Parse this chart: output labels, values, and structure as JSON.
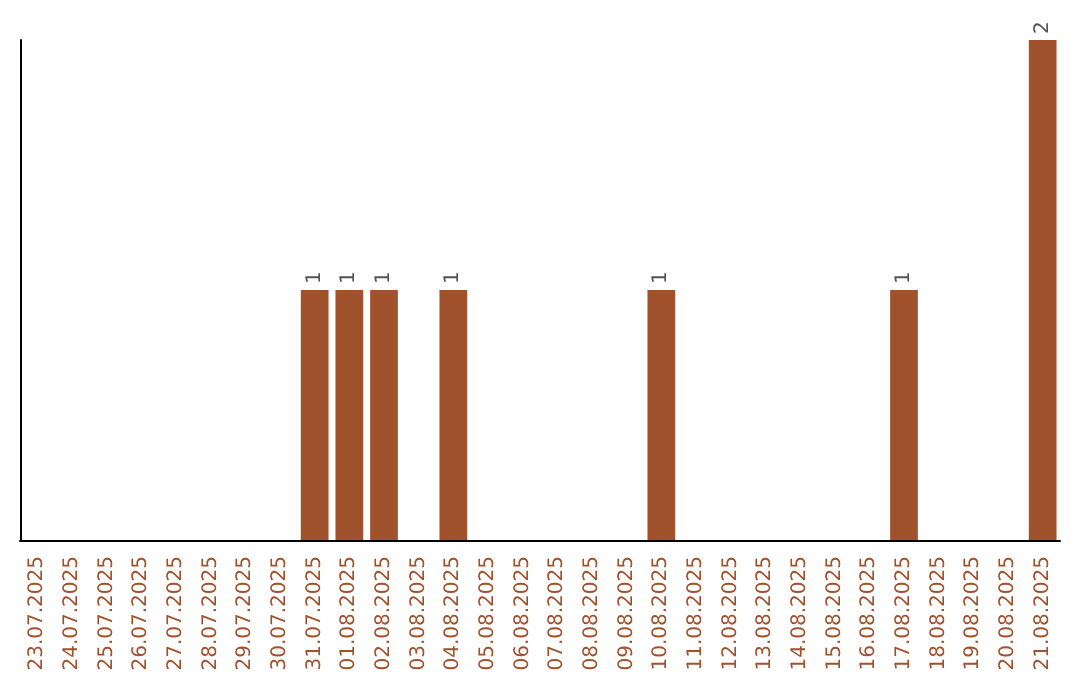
{
  "chart_data": {
    "type": "bar",
    "categories": [
      "23.07.2025",
      "24.07.2025",
      "25.07.2025",
      "26.07.2025",
      "27.07.2025",
      "28.07.2025",
      "29.07.2025",
      "30.07.2025",
      "31.07.2025",
      "01.08.2025",
      "02.08.2025",
      "03.08.2025",
      "04.08.2025",
      "05.08.2025",
      "06.08.2025",
      "07.08.2025",
      "08.08.2025",
      "09.08.2025",
      "10.08.2025",
      "11.08.2025",
      "12.08.2025",
      "13.08.2025",
      "14.08.2025",
      "15.08.2025",
      "16.08.2025",
      "17.08.2025",
      "18.08.2025",
      "19.08.2025",
      "20.08.2025",
      "21.08.2025"
    ],
    "values": [
      0,
      0,
      0,
      0,
      0,
      0,
      0,
      0,
      1,
      1,
      1,
      0,
      1,
      0,
      0,
      0,
      0,
      0,
      1,
      0,
      0,
      0,
      0,
      0,
      0,
      1,
      0,
      0,
      0,
      2
    ],
    "value_labels": [
      null,
      null,
      null,
      null,
      null,
      null,
      null,
      null,
      "1",
      "1",
      "1",
      null,
      "1",
      null,
      null,
      null,
      null,
      null,
      "1",
      null,
      null,
      null,
      null,
      null,
      null,
      "1",
      null,
      null,
      null,
      "2"
    ],
    "color": "#a0522d",
    "tick_labels": "x"
  }
}
